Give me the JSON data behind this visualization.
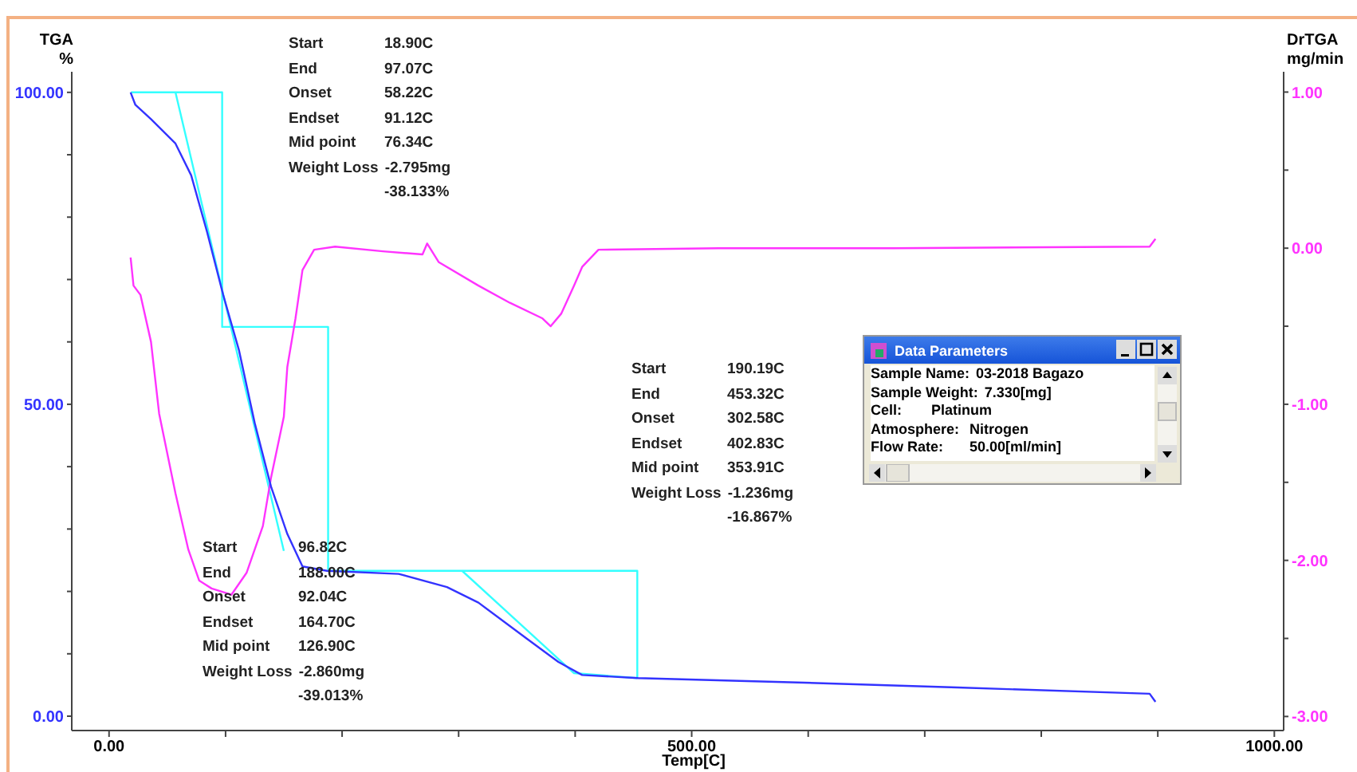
{
  "chart_data": {
    "type": "line",
    "xlabel": "Temp[C]",
    "ylabel": "TGA %",
    "y2label": "DrTGA mg/min",
    "xlim": [
      -32,
      1008
    ],
    "ylim": [
      -2.3,
      103.3
    ],
    "y2lim": [
      -3.09,
      1.13
    ],
    "xticks": [
      {
        "value": 0,
        "label": "0.00"
      },
      {
        "value": 100,
        "label": null
      },
      {
        "value": 200,
        "label": null
      },
      {
        "value": 300,
        "label": null
      },
      {
        "value": 400,
        "label": null
      },
      {
        "value": 500,
        "label": "500.00"
      },
      {
        "value": 600,
        "label": null
      },
      {
        "value": 700,
        "label": null
      },
      {
        "value": 800,
        "label": null
      },
      {
        "value": 900,
        "label": null
      },
      {
        "value": 1000,
        "label": "1000.00"
      }
    ],
    "yticks": [
      {
        "value": 0,
        "label": "0.00"
      },
      {
        "value": 10,
        "label": null
      },
      {
        "value": 20,
        "label": null
      },
      {
        "value": 30,
        "label": null
      },
      {
        "value": 40,
        "label": null
      },
      {
        "value": 50,
        "label": "50.00"
      },
      {
        "value": 60,
        "label": null
      },
      {
        "value": 70,
        "label": null
      },
      {
        "value": 80,
        "label": null
      },
      {
        "value": 90,
        "label": null
      },
      {
        "value": 100,
        "label": "100.00"
      }
    ],
    "y2ticks": [
      {
        "value": -3,
        "label": "-3.00"
      },
      {
        "value": -2.5,
        "label": null
      },
      {
        "value": -2,
        "label": "-2.00"
      },
      {
        "value": -1.5,
        "label": null
      },
      {
        "value": -1,
        "label": "-1.00"
      },
      {
        "value": -0.5,
        "label": null
      },
      {
        "value": 0,
        "label": "0.00"
      },
      {
        "value": 0.5,
        "label": null
      },
      {
        "value": 1,
        "label": "1.00"
      }
    ],
    "grid": false,
    "legend": false,
    "marker": "none",
    "line_style": "solid",
    "series": [
      {
        "color": "#3333ff",
        "x": [
          18.5,
          22.6,
          36,
          57,
          70.5,
          84,
          98,
          111.6,
          125,
          139,
          153,
          166,
          187,
          248.6,
          290,
          317,
          358,
          385.6,
          406,
          454,
          591,
          728,
          893,
          898
        ],
        "values": [
          100,
          98,
          95.7,
          91.8,
          86.7,
          77.7,
          67.5,
          58.6,
          47,
          36.8,
          29.2,
          24,
          23.3,
          22.8,
          20.7,
          18.2,
          12.5,
          8.7,
          6.6,
          6.1,
          5.4,
          4.6,
          3.6,
          2.3
        ]
      },
      {
        "axis": "y2",
        "color": "#ff33ff",
        "x": [
          18.5,
          21,
          27,
          36,
          43,
          57,
          68,
          77.4,
          88,
          105,
          118,
          132,
          139,
          150,
          153,
          160,
          166,
          176,
          194,
          235,
          269,
          273,
          283,
          317,
          344,
          372,
          379,
          388,
          399,
          406,
          420,
          523,
          673,
          893,
          898
        ],
        "values": [
          -0.06,
          -0.24,
          -0.3,
          -0.6,
          -1.06,
          -1.57,
          -1.93,
          -2.13,
          -2.18,
          -2.22,
          -2.08,
          -1.78,
          -1.47,
          -1.08,
          -0.76,
          -0.45,
          -0.14,
          -0.01,
          0.01,
          -0.02,
          -0.04,
          0.03,
          -0.09,
          -0.24,
          -0.35,
          -0.45,
          -0.5,
          -0.42,
          -0.24,
          -0.12,
          -0.01,
          0,
          0,
          0.01,
          0.06
        ]
      },
      {
        "color": "#33ffff",
        "x": [
          18.9,
          97.07,
          97.07,
          188,
          188,
          453.32,
          453.32
        ],
        "values": [
          100,
          100,
          62.4,
          62.4,
          23.3,
          23.3,
          6.1
        ]
      },
      {
        "color": "#33ffff",
        "x": [
          57,
          150
        ],
        "values": [
          100,
          26.5
        ]
      },
      {
        "color": "#33ffff",
        "x": [
          303,
          399,
          453.32
        ],
        "values": [
          23.3,
          6.9,
          6.1
        ]
      }
    ],
    "annotations": [
      "Start 18.90C\nEnd 97.07C\nOnset 58.22C\nEndset 91.12C\nMid point 76.34C\nWeight Loss -2.795mg\n-38.133%",
      "Start 190.19C\nEnd 453.32C\nOnset 302.58C\nEndset 402.83C\nMid point 353.91C\nWeight Loss -1.236mg\n-16.867%",
      "Start 96.82C\nEnd 188.00C\nOnset 92.04C\nEndset 164.70C\nMid point 126.90C\nWeight Loss -2.860mg\n-39.013%",
      "Data Parameters\nSample Name: 03-2018 Bagazo\nSample Weight: 7.330[mg]\nCell: Platinum\nAtmosphere: Nitrogen\nFlow Rate: 50.00[ml/min]"
    ]
  }
}
